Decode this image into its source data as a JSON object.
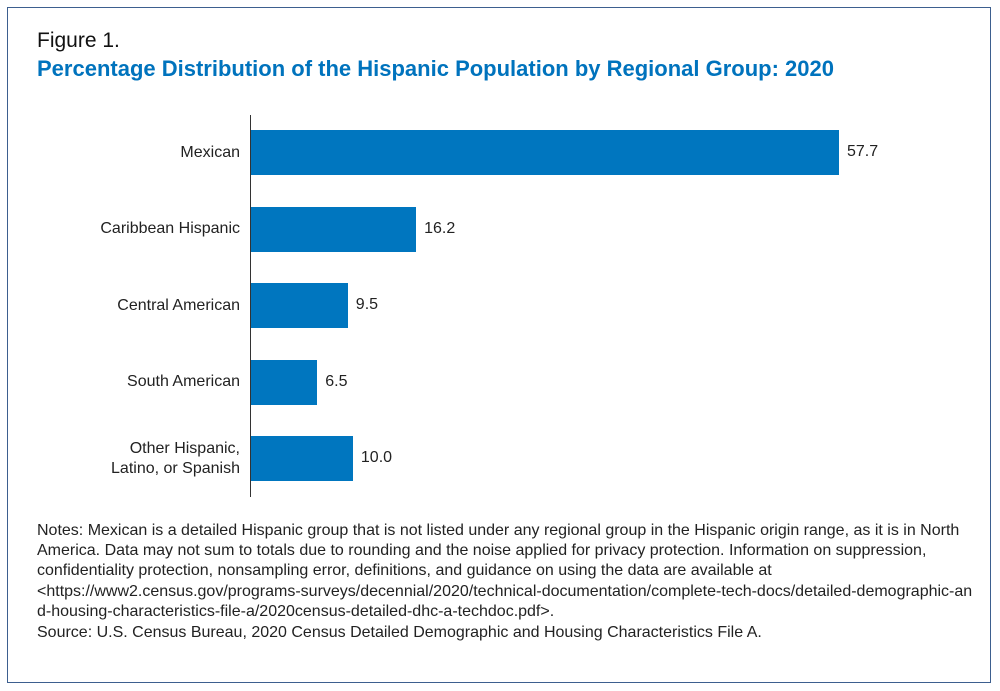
{
  "figure_label": "Figure 1.",
  "chart_data": {
    "type": "bar",
    "orientation": "horizontal",
    "title": "Percentage Distribution of the Hispanic Population by Regional Group: 2020",
    "categories": [
      "Mexican",
      "Caribbean Hispanic",
      "Central American",
      "South American",
      "Other Hispanic, Latino, or Spanish"
    ],
    "category_lines": [
      [
        "Mexican"
      ],
      [
        "Caribbean Hispanic"
      ],
      [
        "Central American"
      ],
      [
        "South American"
      ],
      [
        "Other Hispanic,",
        "Latino, or Spanish"
      ]
    ],
    "values": [
      57.7,
      16.2,
      9.5,
      6.5,
      10.0
    ],
    "value_labels": [
      "57.7",
      "16.2",
      "9.5",
      "6.5",
      "10.0"
    ],
    "xlabel": "",
    "ylabel": "",
    "xlim": [
      0,
      60
    ],
    "grid": false,
    "bar_color": "#0076bf",
    "title_color": "#0073bd"
  },
  "notes": "Notes: Mexican is a detailed Hispanic group that is not listed under any regional group in the Hispanic origin range, as it is in North America. Data may not sum to totals due to rounding and the noise applied for privacy protection. Information on suppression, confidentiality protection, nonsampling error, definitions, and guidance on using the data are available at",
  "notes_url": "<https://www2.census.gov/programs-surveys/decennial/2020/technical-documentation/complete-tech-docs/detailed-demographic-and-housing-characteristics-file-a/2020census-detailed-dhc-a-techdoc.pdf>.",
  "source": "Source: U.S. Census Bureau, 2020 Census Detailed Demographic and Housing Characteristics File A."
}
